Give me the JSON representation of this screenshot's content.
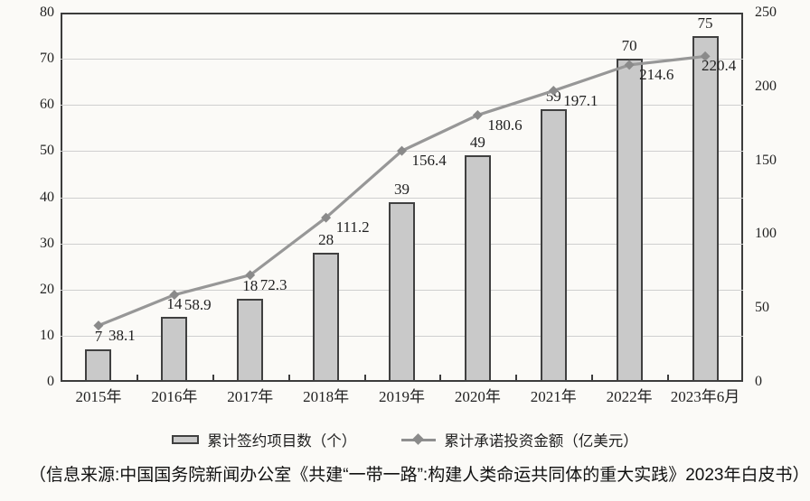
{
  "chart_data": {
    "type": "bar+line combo",
    "categories": [
      "2015年",
      "2016年",
      "2017年",
      "2018年",
      "2019年",
      "2020年",
      "2021年",
      "2022年",
      "2023年6月"
    ],
    "series": [
      {
        "name": "累计签约项目数（个）",
        "type": "bar",
        "axis": "left",
        "values": [
          7,
          14,
          18,
          28,
          39,
          49,
          59,
          70,
          75
        ]
      },
      {
        "name": "累计承诺投资金额（亿美元）",
        "type": "line",
        "axis": "right",
        "values": [
          38.1,
          58.9,
          72.3,
          111.2,
          156.4,
          180.6,
          197.1,
          214.6,
          220.4
        ]
      }
    ],
    "left_axis": {
      "min": 0,
      "max": 80,
      "step": 10,
      "ticks": [
        0,
        10,
        20,
        30,
        40,
        50,
        60,
        70,
        80
      ]
    },
    "right_axis": {
      "min": 0,
      "max": 250,
      "step": 50,
      "ticks": [
        0,
        50,
        100,
        150,
        200,
        250
      ]
    },
    "grid": "horizontal lines at every 10 units of left axis",
    "legend_position": "bottom",
    "data_labels": "shown for both series",
    "colors": {
      "bar_fill": "#c9c9c9",
      "bar_border": "#404040",
      "line": "#979797",
      "marker": "#8a8a8a",
      "grid": "#cfcfcf",
      "axis_border": "#3c3c3c",
      "text": "#1f1f1f",
      "background": "#fbfaf7"
    }
  },
  "source_note": "（信息来源:中国国务院新闻办公室《共建“一带一路”:构建人类命运共同体的重大实践》2023年白皮书）"
}
